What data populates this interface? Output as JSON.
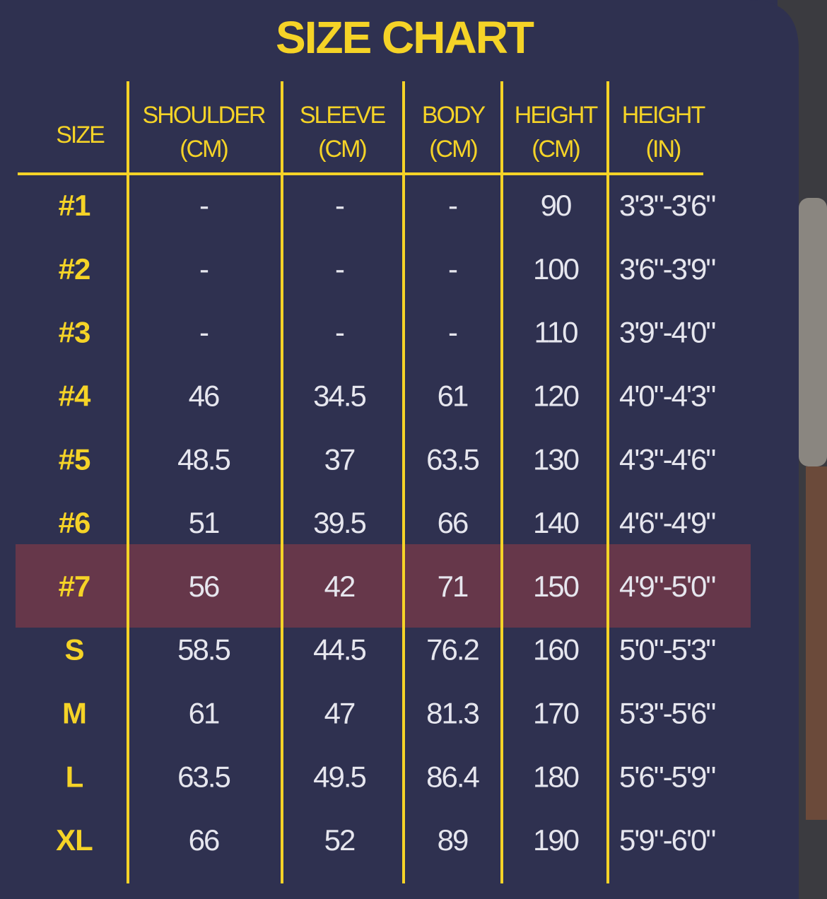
{
  "title": "SIZE CHART",
  "table": {
    "header": [
      [
        "SIZE"
      ],
      [
        "SHOULDER",
        "(CM)"
      ],
      [
        "SLEEVE",
        "(CM)"
      ],
      [
        "BODY",
        "(CM)"
      ],
      [
        "HEIGHT",
        "(CM)"
      ],
      [
        "HEIGHT",
        "(IN)"
      ]
    ],
    "rows": [
      [
        "#1",
        "-",
        "-",
        "-",
        "90",
        "3'3\"-3'6\""
      ],
      [
        "#2",
        "-",
        "-",
        "-",
        "100",
        "3'6\"-3'9\""
      ],
      [
        "#3",
        "-",
        "-",
        "-",
        "110",
        "3'9\"-4'0\""
      ],
      [
        "#4",
        "46",
        "34.5",
        "61",
        "120",
        "4'0\"-4'3\""
      ],
      [
        "#5",
        "48.5",
        "37",
        "63.5",
        "130",
        "4'3\"-4'6\""
      ],
      [
        "#6",
        "51",
        "39.5",
        "66",
        "140",
        "4'6\"-4'9\""
      ],
      [
        "#7",
        "56",
        "42",
        "71",
        "150",
        "4'9\"-5'0\""
      ],
      [
        "S",
        "58.5",
        "44.5",
        "76.2",
        "160",
        "5'0\"-5'3\""
      ],
      [
        "M",
        "61",
        "47",
        "81.3",
        "170",
        "5'3\"-5'6\""
      ],
      [
        "L",
        "63.5",
        "49.5",
        "86.4",
        "180",
        "5'6\"-5'9\""
      ],
      [
        "XL",
        "66",
        "52",
        "89",
        "190",
        "5'9\"-6'0\""
      ]
    ]
  }
}
